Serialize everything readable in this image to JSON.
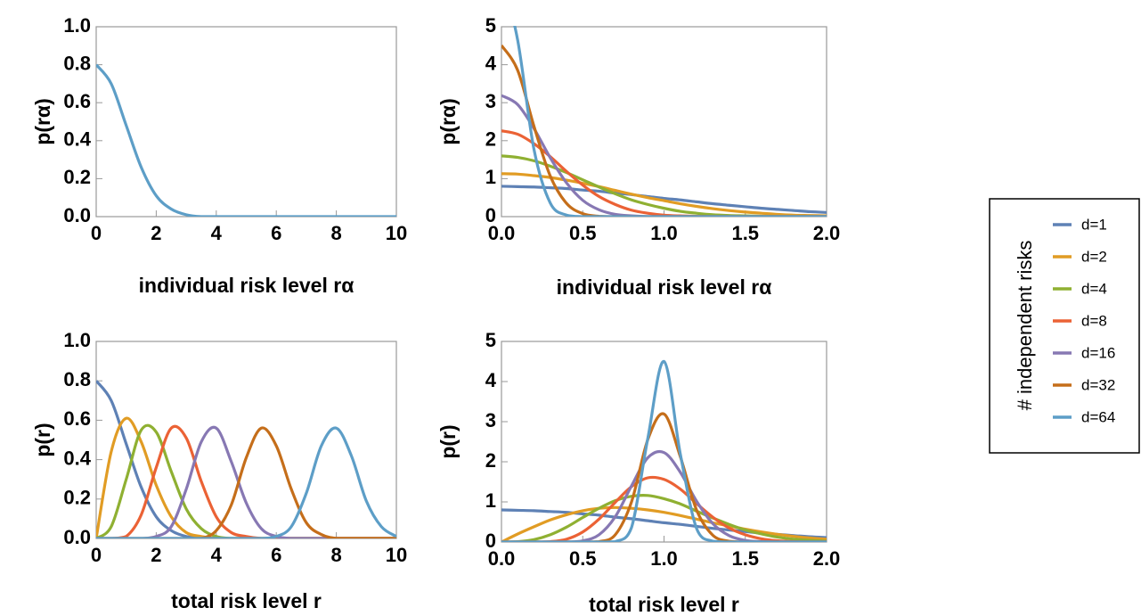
{
  "legend_title": "# independent risks",
  "chart_data": [
    {
      "type": "line",
      "xlabel": "individual risk level rα",
      "ylabel": "p(rα)",
      "x": [
        0,
        0.5,
        1,
        1.5,
        2,
        2.5,
        3,
        3.5,
        4,
        4.5,
        5,
        5.5,
        6,
        6.5,
        7,
        7.5,
        8,
        8.5,
        9,
        9.5,
        10
      ],
      "xlim": [
        0,
        10
      ],
      "xticks": [
        0,
        2,
        4,
        6,
        8,
        10
      ],
      "ylim": [
        0,
        1
      ],
      "yticks": [
        {
          "value": 0,
          "label": "0.0"
        },
        0.2,
        0.4,
        0.6,
        0.8,
        {
          "value": 1,
          "label": "1.0"
        }
      ],
      "series": [
        {
          "color": "#5d9ec7",
          "values": [
            0.8,
            0.7,
            0.48,
            0.26,
            0.11,
            0.04,
            0.01,
            0,
            0,
            0,
            0,
            0,
            0,
            0,
            0,
            0,
            0,
            0,
            0,
            0,
            0
          ]
        }
      ]
    },
    {
      "type": "line",
      "xlabel": "individual risk level rα",
      "ylabel": "p(rα)",
      "x": [
        0,
        0.1,
        0.2,
        0.3,
        0.4,
        0.5,
        0.6,
        0.7,
        0.8,
        0.9,
        1,
        1.1,
        1.2,
        1.3,
        1.4,
        1.5,
        1.6,
        1.7,
        1.8,
        1.9,
        2
      ],
      "xlim": [
        0,
        2
      ],
      "xticks": [
        {
          "value": 0,
          "label": "0.0"
        },
        0.5,
        {
          "value": 1,
          "label": "1.0"
        },
        1.5,
        {
          "value": 2,
          "label": "2.0"
        }
      ],
      "ylim": [
        0,
        5
      ],
      "yticks": [
        0,
        1,
        2,
        3,
        4,
        5
      ],
      "series": [
        {
          "name": "d=1",
          "color": "#5e81b5",
          "values": [
            0.8,
            0.79,
            0.78,
            0.76,
            0.74,
            0.7,
            0.67,
            0.62,
            0.58,
            0.53,
            0.48,
            0.44,
            0.39,
            0.34,
            0.3,
            0.26,
            0.22,
            0.19,
            0.16,
            0.13,
            0.11
          ]
        },
        {
          "name": "d=2",
          "color": "#e19c24",
          "values": [
            1.13,
            1.12,
            1.08,
            1.03,
            0.96,
            0.88,
            0.79,
            0.69,
            0.59,
            0.5,
            0.42,
            0.34,
            0.27,
            0.21,
            0.16,
            0.12,
            0.09,
            0.06,
            0.04,
            0.03,
            0.02
          ]
        },
        {
          "name": "d=4",
          "color": "#8fb032",
          "values": [
            1.6,
            1.56,
            1.47,
            1.33,
            1.16,
            0.97,
            0.78,
            0.6,
            0.44,
            0.32,
            0.22,
            0.14,
            0.09,
            0.05,
            0.03,
            0.02,
            0.01,
            0,
            0,
            0,
            0
          ]
        },
        {
          "name": "d=8",
          "color": "#eb6235",
          "values": [
            2.26,
            2.17,
            1.92,
            1.58,
            1.19,
            0.83,
            0.53,
            0.32,
            0.17,
            0.09,
            0.04,
            0.02,
            0.01,
            0,
            0,
            0,
            0,
            0,
            0,
            0,
            0
          ]
        },
        {
          "name": "d=16",
          "color": "#8778b3",
          "values": [
            3.19,
            2.95,
            2.32,
            1.55,
            0.89,
            0.43,
            0.18,
            0.06,
            0.02,
            0,
            0,
            0,
            0,
            0,
            0,
            0,
            0,
            0,
            0,
            0,
            0
          ]
        },
        {
          "name": "d=32",
          "color": "#c56e1a",
          "values": [
            4.51,
            3.85,
            2.38,
            1.07,
            0.35,
            0.08,
            0.01,
            0,
            0,
            0,
            0,
            0,
            0,
            0,
            0,
            0,
            0,
            0,
            0,
            0,
            0
          ]
        },
        {
          "name": "d=64",
          "color": "#5d9ec7",
          "values": [
            6.38,
            4.64,
            1.77,
            0.36,
            0.04,
            0,
            0,
            0,
            0,
            0,
            0,
            0,
            0,
            0,
            0,
            0,
            0,
            0,
            0,
            0,
            0
          ]
        }
      ]
    },
    {
      "type": "line",
      "xlabel": "total risk level r",
      "ylabel": "p(r)",
      "x": [
        0,
        0.5,
        1,
        1.5,
        2,
        2.5,
        3,
        3.5,
        4,
        4.5,
        5,
        5.5,
        6,
        6.5,
        7,
        7.5,
        8,
        8.5,
        9,
        9.5,
        10
      ],
      "xlim": [
        0,
        10
      ],
      "xticks": [
        0,
        2,
        4,
        6,
        8,
        10
      ],
      "ylim": [
        0,
        1
      ],
      "yticks": [
        {
          "value": 0,
          "label": "0.0"
        },
        0.2,
        0.4,
        0.6,
        0.8,
        {
          "value": 1,
          "label": "1.0"
        }
      ],
      "series": [
        {
          "name": "d=1",
          "color": "#5e81b5",
          "values": [
            0.8,
            0.7,
            0.48,
            0.26,
            0.11,
            0.04,
            0.01,
            0,
            0,
            0,
            0,
            0,
            0,
            0,
            0,
            0,
            0,
            0,
            0,
            0,
            0
          ]
        },
        {
          "name": "d=2",
          "color": "#e19c24",
          "values": [
            0,
            0.44,
            0.61,
            0.49,
            0.27,
            0.11,
            0.03,
            0.01,
            0,
            0,
            0,
            0,
            0,
            0,
            0,
            0,
            0,
            0,
            0,
            0,
            0
          ]
        },
        {
          "name": "d=4",
          "color": "#8fb032",
          "values": [
            0,
            0.06,
            0.3,
            0.55,
            0.54,
            0.34,
            0.15,
            0.05,
            0.01,
            0,
            0,
            0,
            0,
            0,
            0,
            0,
            0,
            0,
            0,
            0,
            0
          ]
        },
        {
          "name": "d=8",
          "color": "#eb6235",
          "values": [
            0,
            0,
            0.01,
            0.12,
            0.36,
            0.56,
            0.51,
            0.29,
            0.11,
            0.03,
            0.01,
            0,
            0,
            0,
            0,
            0,
            0,
            0,
            0,
            0,
            0
          ]
        },
        {
          "name": "d=16",
          "color": "#8778b3",
          "values": [
            0,
            0,
            0,
            0,
            0.01,
            0.06,
            0.25,
            0.49,
            0.56,
            0.39,
            0.18,
            0.05,
            0.01,
            0,
            0,
            0,
            0,
            0,
            0,
            0,
            0
          ]
        },
        {
          "name": "d=32",
          "color": "#c56e1a",
          "values": [
            0,
            0,
            0,
            0,
            0,
            0,
            0,
            0,
            0.04,
            0.17,
            0.41,
            0.56,
            0.47,
            0.25,
            0.08,
            0.02,
            0,
            0,
            0,
            0,
            0
          ]
        },
        {
          "name": "d=64",
          "color": "#5d9ec7",
          "values": [
            0,
            0,
            0,
            0,
            0,
            0,
            0,
            0,
            0,
            0,
            0,
            0,
            0.01,
            0.06,
            0.23,
            0.47,
            0.56,
            0.42,
            0.19,
            0.06,
            0.01
          ]
        }
      ]
    },
    {
      "type": "line",
      "xlabel": "total risk level r",
      "ylabel": "p(r)",
      "x": [
        0,
        0.1,
        0.2,
        0.3,
        0.4,
        0.5,
        0.6,
        0.7,
        0.8,
        0.9,
        1,
        1.1,
        1.2,
        1.3,
        1.4,
        1.5,
        1.6,
        1.7,
        1.8,
        1.9,
        2
      ],
      "xlim": [
        0,
        2
      ],
      "xticks": [
        {
          "value": 0,
          "label": "0.0"
        },
        0.5,
        {
          "value": 1,
          "label": "1.0"
        },
        1.5,
        {
          "value": 2,
          "label": "2.0"
        }
      ],
      "ylim": [
        0,
        5
      ],
      "yticks": [
        0,
        1,
        2,
        3,
        4,
        5
      ],
      "series": [
        {
          "name": "d=1",
          "color": "#5e81b5",
          "values": [
            0.8,
            0.79,
            0.78,
            0.76,
            0.74,
            0.7,
            0.67,
            0.62,
            0.58,
            0.53,
            0.48,
            0.44,
            0.39,
            0.34,
            0.3,
            0.26,
            0.22,
            0.19,
            0.16,
            0.13,
            0.11
          ]
        },
        {
          "name": "d=2",
          "color": "#e19c24",
          "values": [
            0,
            0.2,
            0.38,
            0.55,
            0.68,
            0.78,
            0.84,
            0.86,
            0.84,
            0.8,
            0.74,
            0.66,
            0.57,
            0.48,
            0.4,
            0.32,
            0.25,
            0.19,
            0.14,
            0.1,
            0.07
          ]
        },
        {
          "name": "d=4",
          "color": "#8fb032",
          "values": [
            0,
            0.01,
            0.06,
            0.18,
            0.37,
            0.61,
            0.84,
            1.03,
            1.14,
            1.16,
            1.08,
            0.95,
            0.77,
            0.6,
            0.44,
            0.3,
            0.2,
            0.12,
            0.07,
            0.04,
            0.02
          ]
        },
        {
          "name": "d=8",
          "color": "#eb6235",
          "values": [
            0,
            0,
            0,
            0.01,
            0.07,
            0.25,
            0.57,
            0.99,
            1.38,
            1.6,
            1.56,
            1.32,
            0.96,
            0.62,
            0.35,
            0.18,
            0.08,
            0.03,
            0.01,
            0,
            0
          ]
        },
        {
          "name": "d=16",
          "color": "#8778b3",
          "values": [
            0,
            0,
            0,
            0,
            0,
            0.03,
            0.18,
            0.63,
            1.4,
            2.1,
            2.23,
            1.74,
            1.02,
            0.46,
            0.16,
            0.04,
            0.01,
            0,
            0,
            0,
            0
          ]
        },
        {
          "name": "d=32",
          "color": "#c56e1a",
          "values": [
            0,
            0,
            0,
            0,
            0,
            0,
            0.01,
            0.18,
            1.0,
            2.55,
            3.19,
            2.13,
            0.8,
            0.17,
            0.02,
            0,
            0,
            0,
            0,
            0,
            0
          ]
        },
        {
          "name": "d=64",
          "color": "#5d9ec7",
          "values": [
            0,
            0,
            0,
            0,
            0,
            0,
            0,
            0.01,
            0.36,
            2.58,
            4.5,
            2.2,
            0.34,
            0.02,
            0,
            0,
            0,
            0,
            0,
            0,
            0
          ]
        }
      ]
    }
  ]
}
